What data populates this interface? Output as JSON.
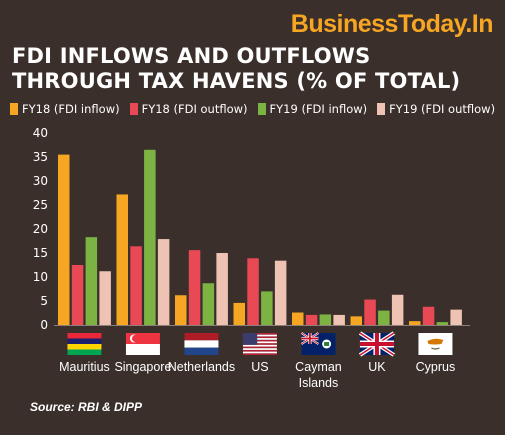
{
  "brand": "BusinessToday.In",
  "colors": {
    "background": "#3a2f2a",
    "brand": "#f6a623",
    "axis": "#8c7f77",
    "FY18_inflow": "#f6a623",
    "FY18_outflow": "#e84955",
    "FY19_inflow": "#7cb342",
    "FY19_outflow": "#eec3b4"
  },
  "source": "Source: RBI & DIPP",
  "chart_data": {
    "type": "bar",
    "title_lines": [
      "FDI INFLOWS AND OUTFLOWS",
      "THROUGH TAX HAVENS (% OF TOTAL)"
    ],
    "categories": [
      {
        "lines": [
          "Mauritius"
        ],
        "flag": "mauritius-flag-icon"
      },
      {
        "lines": [
          "Singapore"
        ],
        "flag": "singapore-flag-icon"
      },
      {
        "lines": [
          "Netherlands"
        ],
        "flag": "netherlands-flag-icon"
      },
      {
        "lines": [
          "US"
        ],
        "flag": "us-flag-icon"
      },
      {
        "lines": [
          "Cayman",
          "Islands"
        ],
        "flag": "cayman-islands-flag-icon"
      },
      {
        "lines": [
          "UK"
        ],
        "flag": "uk-flag-icon"
      },
      {
        "lines": [
          "Cyprus"
        ],
        "flag": "cyprus-flag-icon"
      }
    ],
    "series": [
      {
        "name": "FY18 (FDI inflow)",
        "color": "#f6a623",
        "values": [
          35.5,
          27.2,
          6.2,
          4.6,
          2.6,
          1.8,
          0.8
        ]
      },
      {
        "name": "FY18 (FDI outflow)",
        "color": "#e84955",
        "values": [
          12.5,
          16.4,
          15.6,
          13.9,
          2.1,
          5.3,
          3.8
        ]
      },
      {
        "name": "FY19 (FDI inflow)",
        "color": "#7cb342",
        "values": [
          18.3,
          36.5,
          8.7,
          7.0,
          2.2,
          3.0,
          0.6
        ]
      },
      {
        "name": "FY19 (FDI outflow)",
        "color": "#eec3b4",
        "values": [
          11.2,
          17.9,
          15.0,
          13.4,
          2.1,
          6.3,
          3.2
        ]
      }
    ],
    "ylim": [
      0,
      40
    ],
    "yticks": [
      0,
      5,
      10,
      15,
      20,
      25,
      30,
      35,
      40
    ],
    "grid": false,
    "legend_position": "top"
  }
}
